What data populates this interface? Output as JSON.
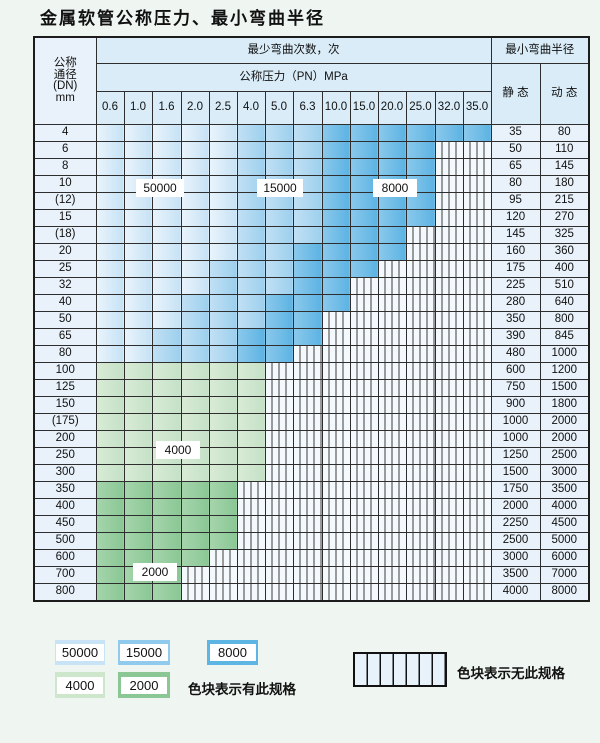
{
  "title": "金属软管公称压力、最小弯曲半径",
  "table": {
    "corner_lines": [
      "公称",
      "通径",
      "(DN)",
      "mm"
    ],
    "header_cycles": "最少弯曲次数，次",
    "header_radius": "最小弯曲半径",
    "header_pressure": "公称压力（PN）MPa",
    "pressure_cols": [
      "0.6",
      "1.0",
      "1.6",
      "2.0",
      "2.5",
      "4.0",
      "5.0",
      "6.3",
      "10.0",
      "15.0",
      "20.0",
      "25.0",
      "32.0",
      "35.0"
    ],
    "static_label": "静 态",
    "dynamic_label": "动 态",
    "zone_key": {
      "A": "50000",
      "B": "15000",
      "C": "8000",
      "D": "4000",
      "E": "2000",
      "X": "no-spec"
    },
    "rows": [
      {
        "dn": "4",
        "zones": "AAAAABBBCCCCCC",
        "static": "35",
        "dynamic": "80"
      },
      {
        "dn": "6",
        "zones": "AAAAABBBCCCCXX",
        "static": "50",
        "dynamic": "110"
      },
      {
        "dn": "8",
        "zones": "AAAAABBBCCCCXX",
        "static": "65",
        "dynamic": "145"
      },
      {
        "dn": "10",
        "zones": "AAAAABBBCCCCXX",
        "static": "80",
        "dynamic": "180"
      },
      {
        "dn": "(12)",
        "zones": "AAAAABBBCCCCXX",
        "static": "95",
        "dynamic": "215"
      },
      {
        "dn": "15",
        "zones": "AAAAABBBCCCCXX",
        "static": "120",
        "dynamic": "270"
      },
      {
        "dn": "(18)",
        "zones": "AAAAABBBCCCXXX",
        "static": "145",
        "dynamic": "325"
      },
      {
        "dn": "20",
        "zones": "AAAAABBCCCCXXX",
        "static": "160",
        "dynamic": "360"
      },
      {
        "dn": "25",
        "zones": "AAAABBBCCCXXXX",
        "static": "175",
        "dynamic": "400"
      },
      {
        "dn": "32",
        "zones": "AAAABBBCCXXXXX",
        "static": "225",
        "dynamic": "510"
      },
      {
        "dn": "40",
        "zones": "AAABBBCCCXXXXX",
        "static": "280",
        "dynamic": "640"
      },
      {
        "dn": "50",
        "zones": "AAABBBCCXXXXXX",
        "static": "350",
        "dynamic": "800"
      },
      {
        "dn": "65",
        "zones": "AABBBCCCXXXXXX",
        "static": "390",
        "dynamic": "845"
      },
      {
        "dn": "80",
        "zones": "AABBBCCXXXXXXX",
        "static": "480",
        "dynamic": "1000"
      },
      {
        "dn": "100",
        "zones": "DDDDDDXXXXXXXX",
        "static": "600",
        "dynamic": "1200"
      },
      {
        "dn": "125",
        "zones": "DDDDDDXXXXXXXX",
        "static": "750",
        "dynamic": "1500"
      },
      {
        "dn": "150",
        "zones": "DDDDDDXXXXXXXX",
        "static": "900",
        "dynamic": "1800"
      },
      {
        "dn": "(175)",
        "zones": "DDDDDDXXXXXXXX",
        "static": "1000",
        "dynamic": "2000"
      },
      {
        "dn": "200",
        "zones": "DDDDDDXXXXXXXX",
        "static": "1000",
        "dynamic": "2000"
      },
      {
        "dn": "250",
        "zones": "DDDDDDXXXXXXXX",
        "static": "1250",
        "dynamic": "2500"
      },
      {
        "dn": "300",
        "zones": "DDDDDDXXXXXXXX",
        "static": "1500",
        "dynamic": "3000"
      },
      {
        "dn": "350",
        "zones": "EEEEEXXXXXXXXX",
        "static": "1750",
        "dynamic": "3500"
      },
      {
        "dn": "400",
        "zones": "EEEEEXXXXXXXXX",
        "static": "2000",
        "dynamic": "4000"
      },
      {
        "dn": "450",
        "zones": "EEEEEXXXXXXXXX",
        "static": "2250",
        "dynamic": "4500"
      },
      {
        "dn": "500",
        "zones": "EEEEEXXXXXXXXX",
        "static": "2500",
        "dynamic": "5000"
      },
      {
        "dn": "600",
        "zones": "EEEEXXXXXXXXXX",
        "static": "3000",
        "dynamic": "6000"
      },
      {
        "dn": "700",
        "zones": "EEEXXXXXXXXXXX",
        "static": "3500",
        "dynamic": "7000"
      },
      {
        "dn": "800",
        "zones": "EEEXXXXXXXXXXX",
        "static": "4000",
        "dynamic": "8000"
      }
    ],
    "zone_labels": [
      {
        "text": "50000",
        "zone": "A"
      },
      {
        "text": "15000",
        "zone": "B"
      },
      {
        "text": "8000",
        "zone": "C"
      },
      {
        "text": "4000",
        "zone": "D"
      },
      {
        "text": "2000",
        "zone": "E"
      }
    ]
  },
  "legend": {
    "items": [
      {
        "value": "50000",
        "color": "#c7e3f5"
      },
      {
        "value": "15000",
        "color": "#90cbed"
      },
      {
        "value": "8000",
        "color": "#5cb5e3"
      },
      {
        "value": "4000",
        "color": "#cde6cc"
      },
      {
        "value": "2000",
        "color": "#8bc795"
      }
    ],
    "has_spec_text": "色块表示有此规格",
    "no_spec_text": "色块表示无此规格"
  },
  "colors": {
    "zone_50000": "#c6e2f5",
    "zone_15000": "#9cd0ee",
    "zone_8000": "#5cb3e3",
    "zone_4000": "#c4e1c6",
    "zone_2000": "#8ac795",
    "no_spec_bg": "#f3f9fd",
    "grid_line": "#2e2e2e",
    "header_bg": "#d9ecf8",
    "label_col_bg": "#e9f2fa",
    "page_bg": "#eff5f0"
  }
}
